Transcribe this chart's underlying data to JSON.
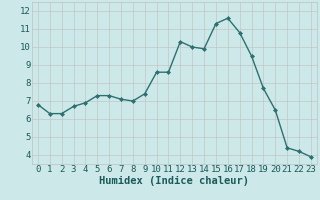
{
  "xlabel": "Humidex (Indice chaleur)",
  "ylabel": "",
  "x": [
    0,
    1,
    2,
    3,
    4,
    5,
    6,
    7,
    8,
    9,
    10,
    11,
    12,
    13,
    14,
    15,
    16,
    17,
    18,
    19,
    20,
    21,
    22,
    23
  ],
  "y": [
    6.8,
    6.3,
    6.3,
    6.7,
    6.9,
    7.3,
    7.3,
    7.1,
    7.0,
    7.4,
    8.6,
    8.6,
    10.3,
    10.0,
    9.9,
    11.3,
    11.6,
    10.8,
    9.5,
    7.7,
    6.5,
    4.4,
    4.2,
    3.9
  ],
  "line_color": "#2d7070",
  "marker": "D",
  "marker_size": 2.0,
  "bg_color": "#cce8e8",
  "grid_color": "#c0c0c0",
  "ylim": [
    3.5,
    12.5
  ],
  "xlim": [
    -0.5,
    23.5
  ],
  "yticks": [
    4,
    5,
    6,
    7,
    8,
    9,
    10,
    11,
    12
  ],
  "xticks": [
    0,
    1,
    2,
    3,
    4,
    5,
    6,
    7,
    8,
    9,
    10,
    11,
    12,
    13,
    14,
    15,
    16,
    17,
    18,
    19,
    20,
    21,
    22,
    23
  ],
  "tick_fontsize": 6.5,
  "xlabel_fontsize": 7.5,
  "line_width": 1.0
}
